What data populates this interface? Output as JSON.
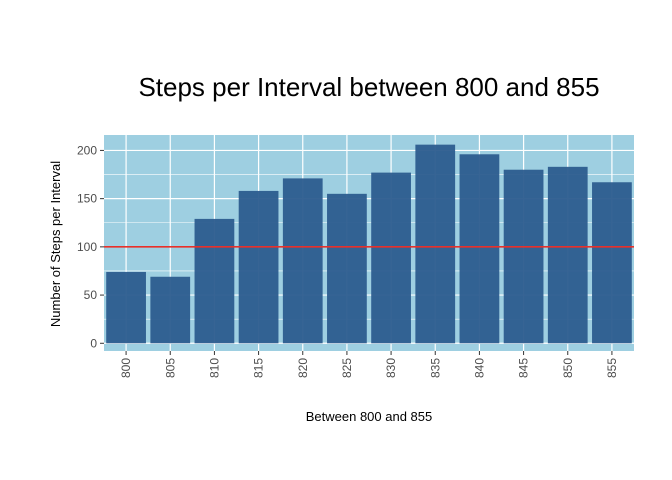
{
  "chart_data": {
    "type": "bar",
    "title": "Steps per Interval between 800 and 855",
    "xlabel": "Between 800 and 855",
    "ylabel": "Number of Steps per Interval",
    "categories": [
      "800",
      "805",
      "810",
      "815",
      "820",
      "825",
      "830",
      "835",
      "840",
      "845",
      "850",
      "855"
    ],
    "values": [
      74,
      69,
      129,
      158,
      171,
      155,
      177,
      206,
      196,
      180,
      183,
      167
    ],
    "ylim": [
      -8,
      216
    ],
    "yticks": [
      0,
      50,
      100,
      150,
      200
    ],
    "x_tick_rotation": "vertical",
    "grid": true,
    "reference_line": {
      "y": 100,
      "color": "#e8302a"
    },
    "colors": {
      "panel_background": "#9ecfe1",
      "bar_fill": "#2c5c8e",
      "grid": "#ffffff"
    }
  }
}
